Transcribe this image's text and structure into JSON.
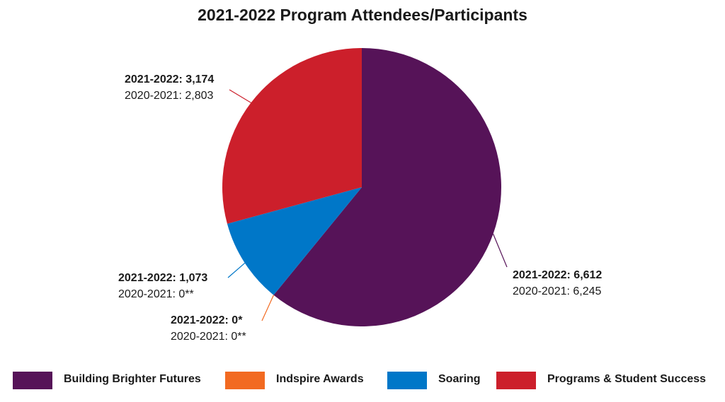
{
  "chart_data": {
    "type": "pie",
    "title": "2021-2022 Program Attendees/Participants",
    "slices": [
      {
        "name": "Building Brighter Futures",
        "color": "#561358",
        "value": 6612,
        "label_current": "2021-2022: 6,612",
        "label_previous": "2020-2021: 6,245"
      },
      {
        "name": "Indspire Awards",
        "color": "#f26a21",
        "value": 0,
        "label_current": "2021-2022: 0*",
        "label_previous": "2020-2021: 0**"
      },
      {
        "name": "Soaring",
        "color": "#0077c8",
        "value": 1073,
        "label_current": "2021-2022: 1,073",
        "label_previous": "2020-2021: 0**"
      },
      {
        "name": "Programs & Student Success",
        "color": "#cc1f2b",
        "value": 3174,
        "label_current": "2021-2022: 3,174",
        "label_previous": "2020-2021: 2,803"
      }
    ],
    "legend_position": "bottom"
  }
}
